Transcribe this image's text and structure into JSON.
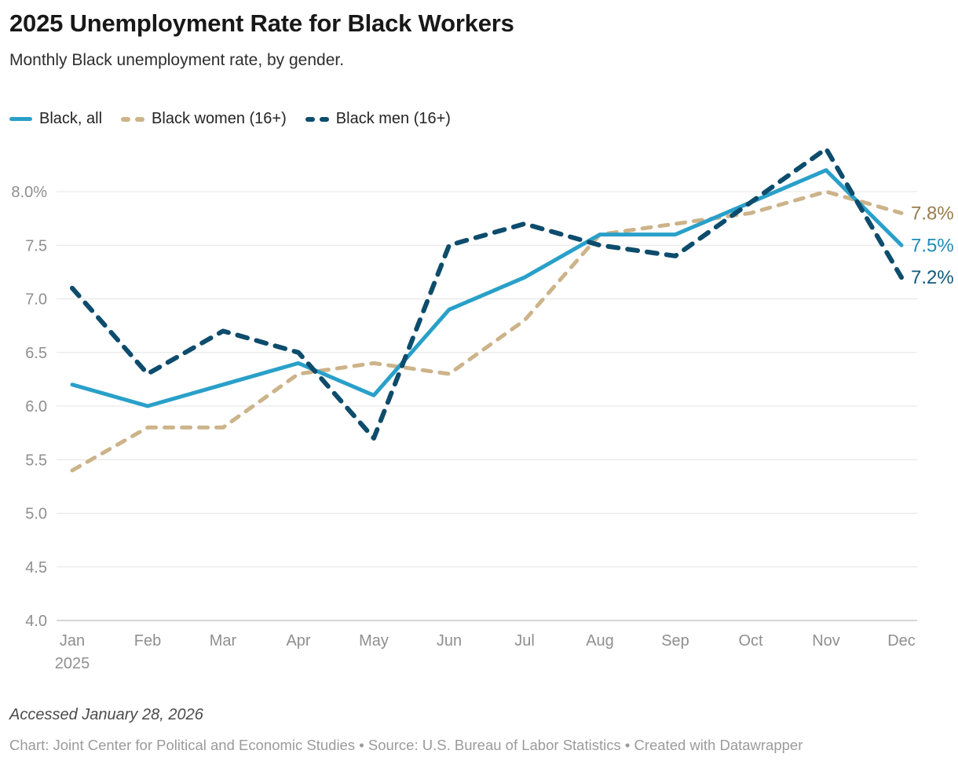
{
  "header": {
    "title": "2025 Unemployment Rate for Black Workers",
    "subtitle": "Monthly Black unemployment rate, by gender."
  },
  "legend": [
    {
      "label": "Black, all",
      "color": "#29a0c9",
      "style": "solid"
    },
    {
      "label": "Black women (16+)",
      "color": "#ccb389",
      "style": "dashed"
    },
    {
      "label": "Black men (16+)",
      "color": "#0d4c6c",
      "style": "dashed"
    }
  ],
  "chart_data": {
    "type": "line",
    "title": "2025 Unemployment Rate for Black Workers",
    "subtitle": "Monthly Black unemployment rate, by gender.",
    "x": [
      "Jan",
      "Feb",
      "Mar",
      "Apr",
      "May",
      "Jun",
      "Jul",
      "Aug",
      "Sep",
      "Oct",
      "Nov",
      "Dec"
    ],
    "x_year_label": "2025",
    "series": [
      {
        "name": "Black, all",
        "values": [
          6.2,
          6.0,
          6.2,
          6.4,
          6.1,
          6.9,
          7.2,
          7.6,
          7.6,
          7.9,
          8.2,
          7.5
        ],
        "color": "#29a0c9",
        "dash": "solid",
        "stroke_width": 5,
        "z": 1,
        "end_label": "7.5%",
        "end_label_color": "#1e8cba"
      },
      {
        "name": "Black women (16+)",
        "values": [
          5.4,
          5.8,
          5.8,
          6.3,
          6.4,
          6.3,
          6.8,
          7.6,
          7.7,
          7.8,
          8.0,
          7.8
        ],
        "color": "#ccb389",
        "dash": "11 11",
        "stroke_width": 5,
        "z": 0,
        "end_label": "7.8%",
        "end_label_color": "#9a7b4c"
      },
      {
        "name": "Black men (16+)",
        "values": [
          7.1,
          6.3,
          6.7,
          6.5,
          5.7,
          7.5,
          7.7,
          7.5,
          7.4,
          7.9,
          8.4,
          7.2
        ],
        "color": "#0d4c6c",
        "dash": "13 12",
        "stroke_width": 6,
        "z": 2,
        "end_label": "7.2%",
        "end_label_color": "#10597c"
      }
    ],
    "yticks": [
      {
        "value": 8.0,
        "label": "8.0%"
      },
      {
        "value": 7.5,
        "label": "7.5"
      },
      {
        "value": 7.0,
        "label": "7.0"
      },
      {
        "value": 6.5,
        "label": "6.5"
      },
      {
        "value": 6.0,
        "label": "6.0"
      },
      {
        "value": 5.5,
        "label": "5.5"
      },
      {
        "value": 5.0,
        "label": "5.0"
      },
      {
        "value": 4.5,
        "label": "4.5"
      },
      {
        "value": 4.0,
        "label": "4.0"
      }
    ],
    "ylim": [
      4.0,
      8.5
    ],
    "grid": true,
    "baseline_value": 4.0,
    "grid_color": "#e4e4e4",
    "baseline_color": "#c7c7c7",
    "legend_position": "top"
  },
  "footer": {
    "accessed": "Accessed January 28, 2026",
    "attribution": "Chart: Joint Center for Political and Economic Studies • Source: U.S. Bureau of Labor Statistics • Created with Datawrapper"
  }
}
